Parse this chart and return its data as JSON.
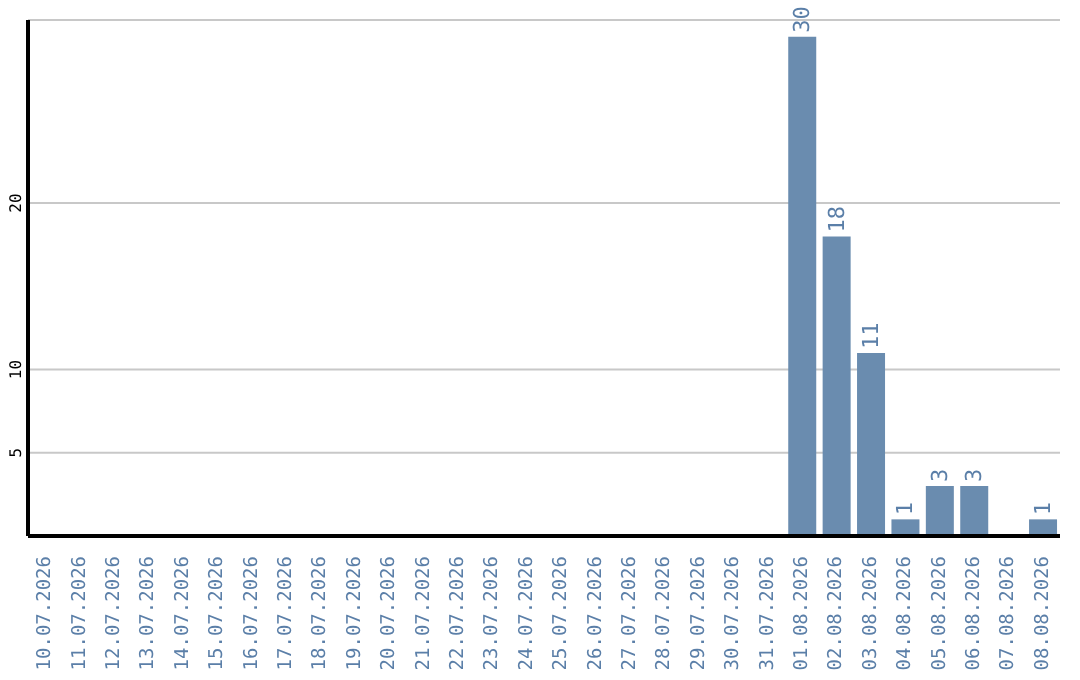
{
  "chart_data": {
    "type": "bar",
    "categories": [
      "10.07.2026",
      "11.07.2026",
      "12.07.2026",
      "13.07.2026",
      "14.07.2026",
      "15.07.2026",
      "16.07.2026",
      "17.07.2026",
      "18.07.2026",
      "19.07.2026",
      "20.07.2026",
      "21.07.2026",
      "22.07.2026",
      "23.07.2026",
      "24.07.2026",
      "25.07.2026",
      "26.07.2026",
      "27.07.2026",
      "28.07.2026",
      "29.07.2026",
      "30.07.2026",
      "31.07.2026",
      "01.08.2026",
      "02.08.2026",
      "03.08.2026",
      "04.08.2026",
      "05.08.2026",
      "06.08.2026",
      "07.08.2026",
      "08.08.2026"
    ],
    "values": [
      0,
      0,
      0,
      0,
      0,
      0,
      0,
      0,
      0,
      0,
      0,
      0,
      0,
      0,
      0,
      0,
      0,
      0,
      0,
      0,
      0,
      0,
      30,
      18,
      11,
      1,
      3,
      3,
      0,
      1
    ],
    "value_labels": [
      null,
      null,
      null,
      null,
      null,
      null,
      null,
      null,
      null,
      null,
      null,
      null,
      null,
      null,
      null,
      null,
      null,
      null,
      null,
      null,
      null,
      null,
      "30",
      "18",
      "11",
      "1",
      "3",
      "3",
      null,
      "1"
    ],
    "color": "#6a8caf",
    "ylim": [
      0,
      31
    ],
    "yticks": [
      5,
      10,
      20
    ],
    "grid": "y"
  }
}
